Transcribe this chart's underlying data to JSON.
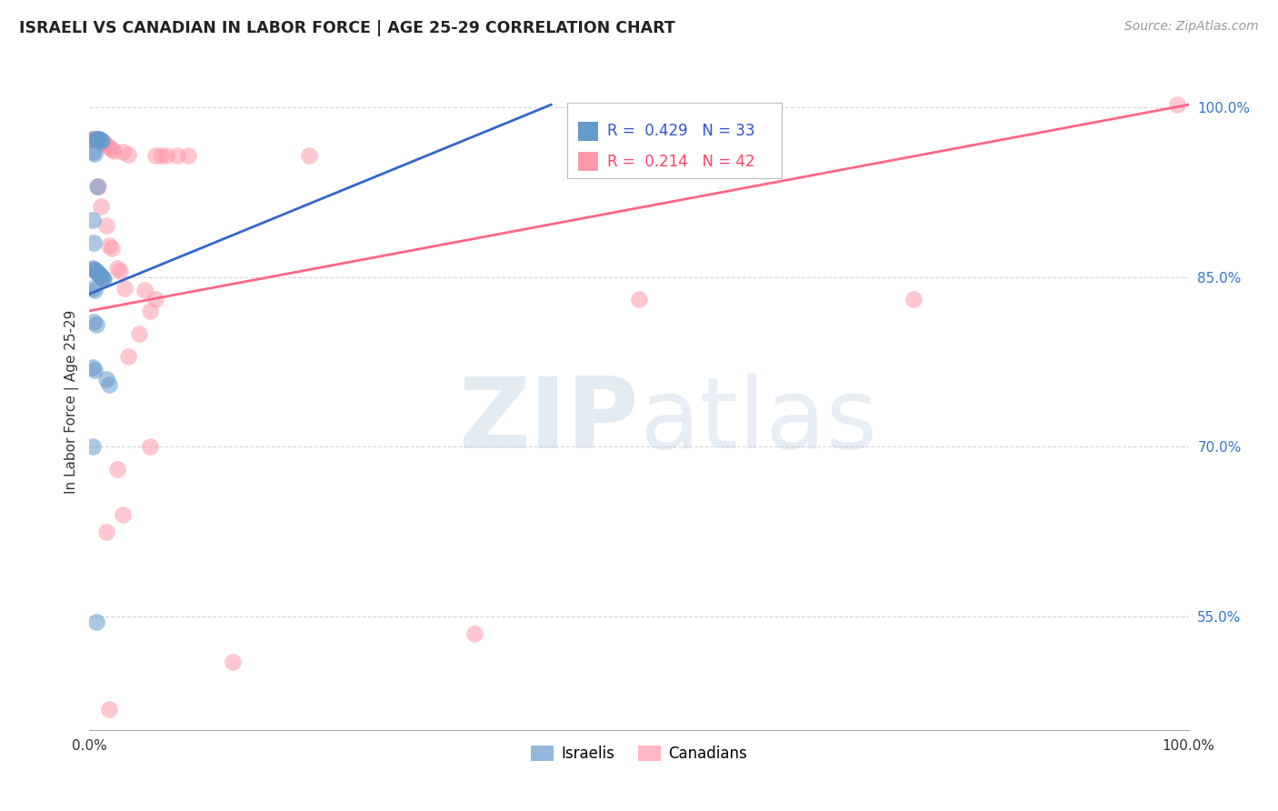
{
  "title": "ISRAELI VS CANADIAN IN LABOR FORCE | AGE 25-29 CORRELATION CHART",
  "source": "Source: ZipAtlas.com",
  "ylabel": "In Labor Force | Age 25-29",
  "xlim": [
    0.0,
    1.0
  ],
  "ylim": [
    0.45,
    1.03
  ],
  "y_tick_labels": [
    "55.0%",
    "70.0%",
    "85.0%",
    "100.0%"
  ],
  "y_ticks": [
    0.55,
    0.7,
    0.85,
    1.0
  ],
  "legend_r_israeli": "0.429",
  "legend_n_israeli": "33",
  "legend_r_canadian": "0.214",
  "legend_n_canadian": "42",
  "israeli_color": "#6699cc",
  "canadian_color": "#ff99aa",
  "israeli_line_color": "#3366cc",
  "canadian_line_color": "#ff6688",
  "israeli_line": [
    [
      0.0,
      0.835
    ],
    [
      0.42,
      1.002
    ]
  ],
  "canadian_line": [
    [
      0.0,
      0.82
    ],
    [
      1.0,
      1.002
    ]
  ],
  "israeli_points": [
    [
      0.003,
      0.972
    ],
    [
      0.006,
      0.972
    ],
    [
      0.007,
      0.971
    ],
    [
      0.008,
      0.972
    ],
    [
      0.009,
      0.972
    ],
    [
      0.01,
      0.971
    ],
    [
      0.011,
      0.97
    ],
    [
      0.003,
      0.96
    ],
    [
      0.005,
      0.959
    ],
    [
      0.007,
      0.93
    ],
    [
      0.003,
      0.9
    ],
    [
      0.004,
      0.88
    ],
    [
      0.003,
      0.858
    ],
    [
      0.004,
      0.857
    ],
    [
      0.005,
      0.856
    ],
    [
      0.006,
      0.855
    ],
    [
      0.007,
      0.854
    ],
    [
      0.008,
      0.853
    ],
    [
      0.009,
      0.852
    ],
    [
      0.01,
      0.851
    ],
    [
      0.011,
      0.85
    ],
    [
      0.012,
      0.849
    ],
    [
      0.013,
      0.848
    ],
    [
      0.003,
      0.84
    ],
    [
      0.005,
      0.838
    ],
    [
      0.004,
      0.81
    ],
    [
      0.006,
      0.808
    ],
    [
      0.003,
      0.77
    ],
    [
      0.005,
      0.768
    ],
    [
      0.015,
      0.76
    ],
    [
      0.018,
      0.755
    ],
    [
      0.003,
      0.7
    ],
    [
      0.006,
      0.545
    ]
  ],
  "canadian_points": [
    [
      0.003,
      0.972
    ],
    [
      0.005,
      0.972
    ],
    [
      0.006,
      0.972
    ],
    [
      0.008,
      0.971
    ],
    [
      0.01,
      0.97
    ],
    [
      0.012,
      0.969
    ],
    [
      0.014,
      0.968
    ],
    [
      0.016,
      0.966
    ],
    [
      0.018,
      0.964
    ],
    [
      0.02,
      0.963
    ],
    [
      0.022,
      0.961
    ],
    [
      0.03,
      0.96
    ],
    [
      0.035,
      0.958
    ],
    [
      0.06,
      0.957
    ],
    [
      0.065,
      0.957
    ],
    [
      0.07,
      0.957
    ],
    [
      0.08,
      0.957
    ],
    [
      0.09,
      0.957
    ],
    [
      0.2,
      0.957
    ],
    [
      0.99,
      1.002
    ],
    [
      0.008,
      0.93
    ],
    [
      0.01,
      0.912
    ],
    [
      0.015,
      0.895
    ],
    [
      0.018,
      0.878
    ],
    [
      0.02,
      0.875
    ],
    [
      0.025,
      0.858
    ],
    [
      0.028,
      0.855
    ],
    [
      0.032,
      0.84
    ],
    [
      0.05,
      0.838
    ],
    [
      0.055,
      0.82
    ],
    [
      0.06,
      0.83
    ],
    [
      0.5,
      0.83
    ],
    [
      0.75,
      0.83
    ],
    [
      0.045,
      0.8
    ],
    [
      0.035,
      0.78
    ],
    [
      0.055,
      0.7
    ],
    [
      0.025,
      0.68
    ],
    [
      0.03,
      0.64
    ],
    [
      0.015,
      0.625
    ],
    [
      0.35,
      0.535
    ],
    [
      0.13,
      0.51
    ],
    [
      0.018,
      0.468
    ]
  ],
  "background_color": "#ffffff",
  "grid_color": "#cccccc"
}
